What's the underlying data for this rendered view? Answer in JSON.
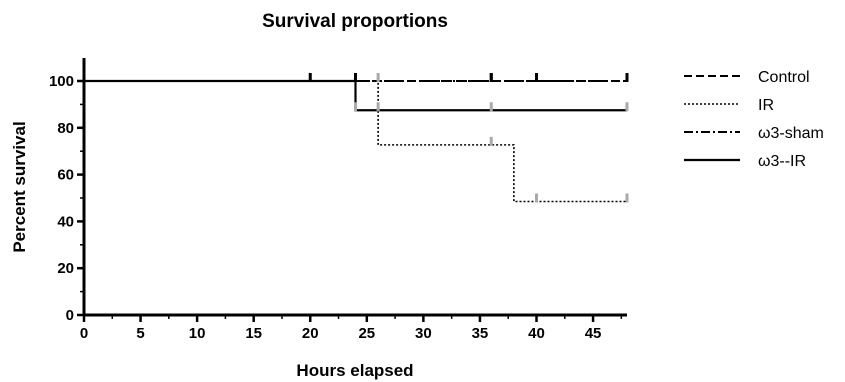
{
  "chart_data": {
    "type": "line",
    "subtype": "kaplan-meier step",
    "title": "Survival proportions",
    "xlabel": "Hours elapsed",
    "ylabel": "Percent survival",
    "xlim": [
      0,
      48
    ],
    "ylim": [
      0,
      100
    ],
    "xticks": [
      "0",
      "5",
      "10",
      "15",
      "20",
      "25",
      "30",
      "35",
      "40",
      "45"
    ],
    "yticks": [
      "0",
      "20",
      "40",
      "60",
      "80",
      "100"
    ],
    "grid": false,
    "legend_position": "right",
    "series": [
      {
        "name": "Control",
        "line_style": "dashed",
        "color": "#000000",
        "x": [
          0,
          48
        ],
        "y": [
          100,
          100
        ],
        "censored": [
          {
            "x": 20,
            "y": 100
          },
          {
            "x": 36,
            "y": 100
          },
          {
            "x": 40,
            "y": 100
          },
          {
            "x": 48,
            "y": 100
          }
        ]
      },
      {
        "name": "IR",
        "line_style": "dotted",
        "color": "#000000",
        "x": [
          0,
          26,
          38,
          48
        ],
        "y": [
          100,
          72.7,
          48.5,
          48.5
        ],
        "censored": [
          {
            "x": 24,
            "y": 100
          },
          {
            "x": 26,
            "y": 100
          },
          {
            "x": 36,
            "y": 72.7
          },
          {
            "x": 40,
            "y": 48.5
          },
          {
            "x": 48,
            "y": 48.5
          }
        ]
      },
      {
        "name": "ω3-sham",
        "line_style": "dash-dot",
        "color": "#000000",
        "x": [
          0,
          48
        ],
        "y": [
          100,
          100
        ],
        "censored": [
          {
            "x": 24,
            "y": 100
          },
          {
            "x": 36,
            "y": 100
          },
          {
            "x": 48,
            "y": 100
          }
        ]
      },
      {
        "name": "ω3--IR",
        "line_style": "solid",
        "color": "#000000",
        "x": [
          0,
          24,
          48
        ],
        "y": [
          100,
          87.5,
          87.5
        ],
        "censored": [
          {
            "x": 24,
            "y": 87.5
          },
          {
            "x": 26,
            "y": 87.5
          },
          {
            "x": 36,
            "y": 87.5
          },
          {
            "x": 48,
            "y": 87.5
          }
        ]
      }
    ],
    "censor_mark_colors": {
      "dark": "#000000",
      "light": "#aaaaaa"
    }
  }
}
